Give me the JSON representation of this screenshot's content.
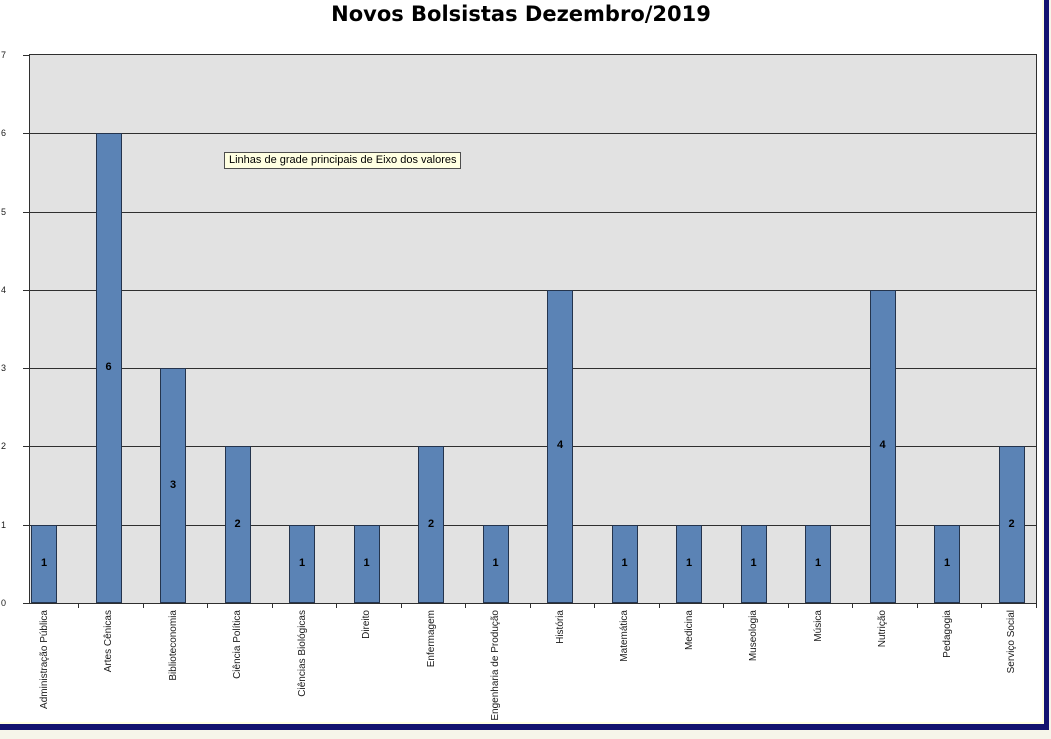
{
  "window": {
    "outer_background": "#F6F5EA",
    "sheet_background": "#FFFFFF",
    "navy_border_color": "#14146E",
    "inner_strip_color": "#FFFFE1"
  },
  "chart": {
    "title": "Novos Bolsistas Dezembro/2019",
    "tooltip_text": "Linhas de grade principais de Eixo dos valores",
    "colors": {
      "bar_fill": "#5B83B5",
      "bar_border": "#24344D",
      "plot_background": "#E2E2E2",
      "gridline": "#2F2F2F",
      "tooltip_background": "#FFFFE1",
      "text": "#1A1A1A"
    }
  },
  "chart_data": {
    "type": "bar",
    "title": "Novos Bolsistas Dezembro/2019",
    "categories": [
      "Administração Pública",
      "Artes Cênicas",
      "Biblioteconomia",
      "Ciência Política",
      "Ciências Biológicas",
      "Direito",
      "Enfermagem",
      "Engenharia de Produção",
      "História",
      "Matemática",
      "Medicina",
      "Museologia",
      "Música",
      "Nutrição",
      "Pedagogia",
      "Serviço Social"
    ],
    "values": [
      1,
      6,
      3,
      2,
      1,
      1,
      2,
      1,
      4,
      1,
      1,
      1,
      1,
      4,
      1,
      2
    ],
    "xlabel": "",
    "ylabel": "",
    "ylim": [
      0,
      7
    ],
    "yticks": [
      0,
      1,
      2,
      3,
      4,
      5,
      6,
      7
    ],
    "grid": true,
    "data_labels": "center",
    "legend": "none",
    "x_label_rotation_degrees": 90
  }
}
